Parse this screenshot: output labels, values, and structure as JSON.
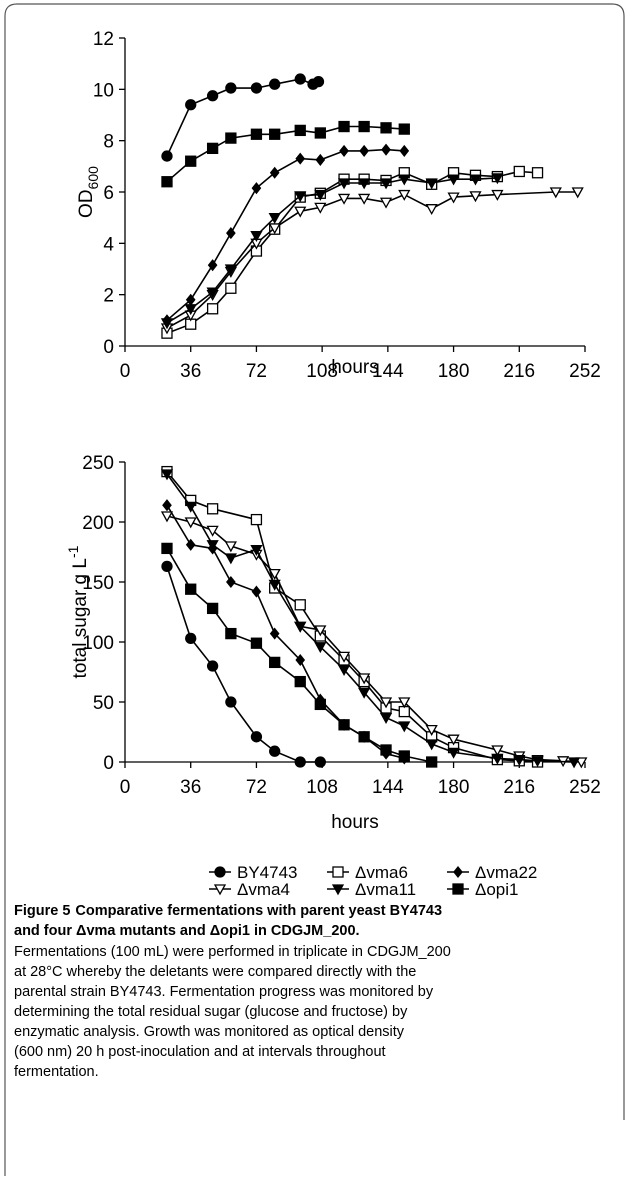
{
  "chart_data": [
    {
      "type": "line",
      "xlabel": "hours",
      "ylabel": {
        "text": "OD",
        "subscript": "600"
      },
      "xlim": [
        0,
        252
      ],
      "xticks": [
        0,
        36,
        72,
        108,
        144,
        180,
        216,
        252
      ],
      "ylim": [
        0,
        12
      ],
      "yticks": [
        0,
        2,
        4,
        6,
        8,
        10,
        12
      ],
      "series": [
        {
          "marker": "circle",
          "filled": true,
          "color": "#000000",
          "x": [
            23,
            36,
            48,
            58,
            72,
            82,
            96,
            103,
            106
          ],
          "values": [
            7.4,
            9.4,
            9.75,
            10.05,
            10.05,
            10.2,
            10.4,
            10.2,
            10.3
          ]
        },
        {
          "marker": "square",
          "filled": false,
          "color": "#000000",
          "x": [
            23,
            36,
            48,
            58,
            72,
            82,
            96,
            107,
            120,
            131,
            143,
            153,
            168,
            180,
            192,
            204,
            216,
            226
          ],
          "values": [
            0.5,
            0.85,
            1.45,
            2.25,
            3.7,
            4.55,
            5.8,
            5.95,
            6.5,
            6.5,
            6.45,
            6.75,
            6.3,
            6.75,
            6.65,
            6.6,
            6.8,
            6.75
          ]
        },
        {
          "marker": "diamond",
          "filled": true,
          "color": "#000000",
          "x": [
            23,
            36,
            48,
            58,
            72,
            82,
            96,
            107,
            120,
            131,
            143,
            153
          ],
          "values": [
            1.0,
            1.8,
            3.15,
            4.4,
            6.15,
            6.75,
            7.3,
            7.25,
            7.6,
            7.6,
            7.65,
            7.6
          ]
        },
        {
          "marker": "triangle-down",
          "filled": false,
          "color": "#000000",
          "x": [
            23,
            36,
            48,
            58,
            72,
            82,
            96,
            107,
            120,
            131,
            143,
            153,
            168,
            180,
            192,
            204,
            236,
            248
          ],
          "values": [
            0.7,
            1.2,
            2.0,
            2.9,
            4.0,
            4.6,
            5.25,
            5.4,
            5.75,
            5.75,
            5.6,
            5.9,
            5.35,
            5.8,
            5.85,
            5.9,
            6.0,
            6.0
          ]
        },
        {
          "marker": "triangle-down",
          "filled": true,
          "color": "#000000",
          "x": [
            23,
            36,
            48,
            58,
            72,
            82,
            96,
            107,
            120,
            131,
            143,
            153,
            168,
            180,
            192,
            204
          ],
          "values": [
            0.9,
            1.45,
            2.1,
            3.0,
            4.3,
            5.0,
            5.85,
            5.9,
            6.35,
            6.35,
            6.35,
            6.5,
            6.35,
            6.5,
            6.5,
            6.55
          ]
        },
        {
          "marker": "square",
          "filled": true,
          "color": "#000000",
          "x": [
            23,
            36,
            48,
            58,
            72,
            82,
            96,
            107,
            120,
            131,
            143,
            153
          ],
          "values": [
            6.4,
            7.2,
            7.7,
            8.1,
            8.25,
            8.25,
            8.4,
            8.3,
            8.55,
            8.55,
            8.5,
            8.45
          ]
        }
      ]
    },
    {
      "type": "line",
      "xlabel": "hours",
      "ylabel": {
        "text": "total sugar g L",
        "superscript": "-1"
      },
      "xlim": [
        0,
        252
      ],
      "xticks": [
        0,
        36,
        72,
        108,
        144,
        180,
        216,
        252
      ],
      "ylim": [
        0,
        250
      ],
      "yticks": [
        0,
        50,
        100,
        150,
        200,
        250
      ],
      "legend": "bottom",
      "series": [
        {
          "name": "BY4743",
          "marker": "circle",
          "filled": true,
          "color": "#000000",
          "x": [
            23,
            36,
            48,
            58,
            72,
            82,
            96,
            107
          ],
          "values": [
            163,
            103,
            80,
            50,
            21,
            9,
            0,
            0
          ]
        },
        {
          "name": "Δvma6",
          "marker": "square",
          "filled": false,
          "color": "#000000",
          "x": [
            23,
            36,
            48,
            72,
            82,
            96,
            107,
            120,
            131,
            143,
            153,
            168,
            180,
            204,
            216,
            226
          ],
          "values": [
            242,
            218,
            211,
            202,
            145,
            131,
            105,
            85,
            67,
            45,
            42,
            21,
            12,
            2,
            1,
            0
          ]
        },
        {
          "name": "Δvma22",
          "marker": "diamond",
          "filled": true,
          "color": "#000000",
          "x": [
            23,
            36,
            48,
            58,
            72,
            82,
            96,
            107,
            120,
            131,
            143,
            153
          ],
          "values": [
            214,
            181,
            178,
            150,
            142,
            107,
            85,
            52,
            31,
            21,
            7,
            3
          ]
        },
        {
          "name": "Δvma4",
          "marker": "triangle-down",
          "filled": false,
          "color": "#000000",
          "x": [
            23,
            36,
            48,
            58,
            72,
            82,
            96,
            107,
            120,
            131,
            143,
            153,
            168,
            180,
            204,
            216,
            226,
            240,
            250
          ],
          "values": [
            205,
            200,
            193,
            180,
            173,
            157,
            113,
            110,
            88,
            70,
            50,
            50,
            27,
            19,
            10,
            5,
            2,
            1,
            0
          ]
        },
        {
          "name": "Δvma11",
          "marker": "triangle-down",
          "filled": true,
          "color": "#000000",
          "x": [
            23,
            36,
            48,
            58,
            72,
            82,
            96,
            107,
            120,
            131,
            143,
            153,
            168,
            180,
            204,
            216,
            226,
            246
          ],
          "values": [
            240,
            213,
            181,
            170,
            177,
            148,
            113,
            96,
            77,
            58,
            37,
            30,
            15,
            8,
            3,
            2,
            1,
            0
          ]
        },
        {
          "name": "Δopi1",
          "marker": "square",
          "filled": true,
          "color": "#000000",
          "x": [
            23,
            36,
            48,
            58,
            72,
            82,
            96,
            107,
            120,
            131,
            143,
            153,
            168
          ],
          "values": [
            178,
            144,
            128,
            107,
            99,
            83,
            67,
            48,
            31,
            21,
            10,
            5,
            0
          ]
        }
      ]
    }
  ],
  "caption": {
    "label": "Figure 5",
    "title_lines": [
      "Comparative fermentations with parent yeast BY4743",
      "and four Δvma mutants and Δopi1 in CDGJM_200."
    ],
    "body_lines": [
      "Fermentations (100 mL) were performed in triplicate in CDGJM_200",
      "at 28°C whereby the deletants were compared directly with the",
      "parental strain BY4743. Fermentation progress was monitored by",
      "determining the total residual sugar (glucose and fructose) by",
      "enzymatic analysis. Growth was monitored as optical density",
      "(600 nm) 20 h post-inoculation and at intervals throughout",
      "fermentation."
    ]
  }
}
